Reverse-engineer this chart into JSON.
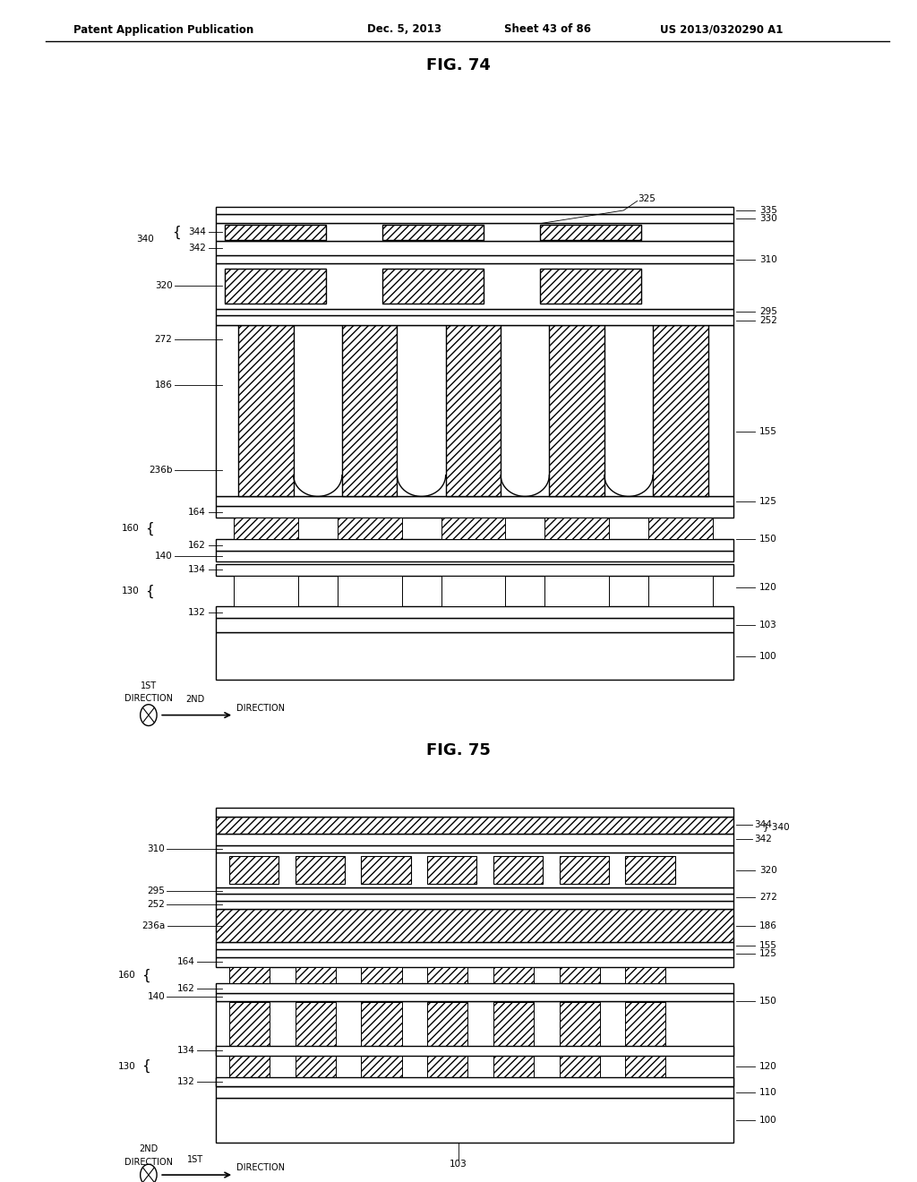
{
  "title": "Patent Application Publication",
  "date": "Dec. 5, 2013",
  "sheet": "Sheet 43 of 86",
  "patent": "US 2013/0320290 A1",
  "fig74_title": "FIG. 74",
  "fig75_title": "FIG. 75",
  "background_color": "#ffffff",
  "line_color": "#000000"
}
